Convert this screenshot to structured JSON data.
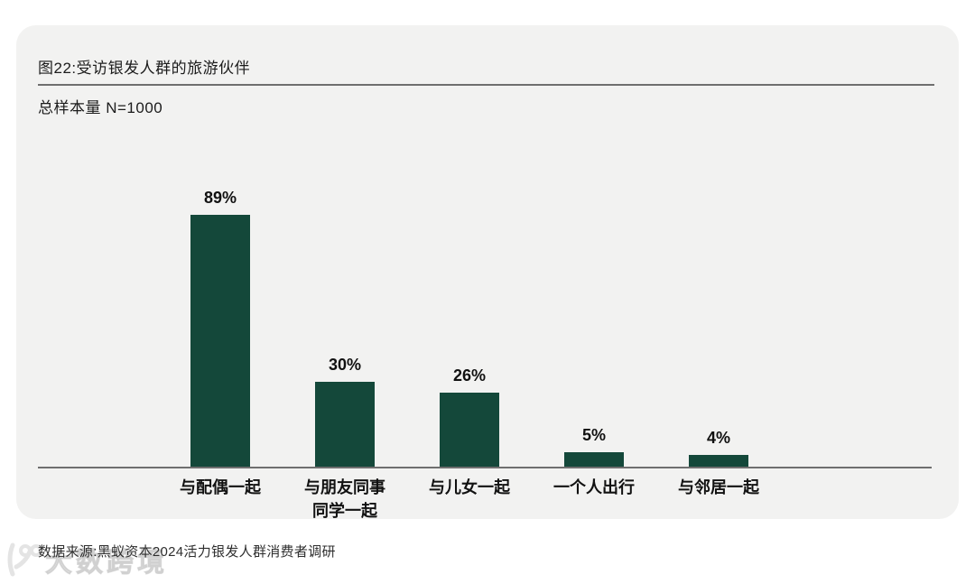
{
  "card": {
    "title": "图22:受访银发人群的旅游伙伴",
    "sample_note": "总样本量 N=1000"
  },
  "chart_data": {
    "type": "bar",
    "title": "图22:受访银发人群的旅游伙伴",
    "subtitle": "总样本量 N=1000",
    "categories": [
      "与配偶一起",
      "与朋友同事\n同学一起",
      "与儿女一起",
      "一个人出行",
      "与邻居一起"
    ],
    "values": [
      89,
      30,
      26,
      5,
      4
    ],
    "value_labels": [
      "89%",
      "30%",
      "26%",
      "5%",
      "4%"
    ],
    "unit": "%",
    "ylim": [
      0,
      100
    ],
    "grid": false,
    "legend": false,
    "bar_color": "#14483a",
    "axis_color": "#6f6f6f"
  },
  "footer": {
    "source": "数据来源:黑蚁资本2024活力银发人群消费者调研",
    "watermark": "大数跨境"
  }
}
